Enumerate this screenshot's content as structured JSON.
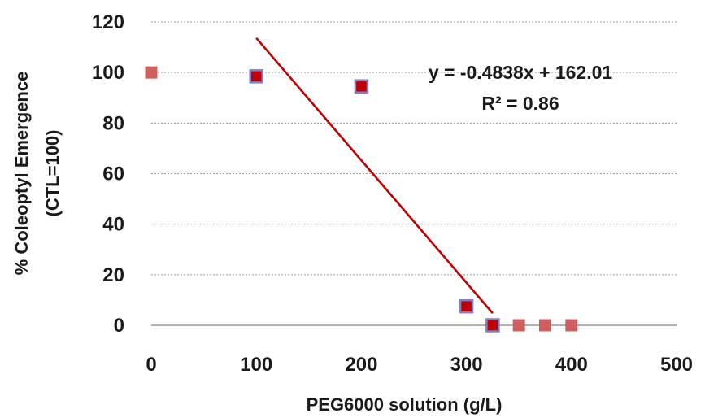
{
  "chart_data": {
    "type": "scatter",
    "xlabel": "PEG6000 solution (g/L)",
    "ylabel": [
      "% Coleoptyl Emergence",
      "(CTL=100)"
    ],
    "xlim": [
      0,
      500
    ],
    "ylim": [
      0,
      120
    ],
    "x_ticks": [
      0,
      100,
      200,
      300,
      400,
      500
    ],
    "y_ticks": [
      0,
      20,
      40,
      60,
      80,
      100,
      120
    ],
    "grid": "horizontal",
    "series": [
      {
        "points": [
          {
            "x": 0,
            "y": 100,
            "style": "light"
          },
          {
            "x": 100,
            "y": 98.5,
            "style": "dark"
          },
          {
            "x": 200,
            "y": 94.5,
            "style": "dark"
          },
          {
            "x": 300,
            "y": 7.5,
            "style": "dark"
          },
          {
            "x": 325,
            "y": 0,
            "style": "dark"
          },
          {
            "x": 350,
            "y": 0,
            "style": "light"
          },
          {
            "x": 375,
            "y": 0,
            "style": "light"
          },
          {
            "x": 400,
            "y": 0,
            "style": "light"
          }
        ]
      }
    ],
    "trendline": {
      "slope": -0.4838,
      "intercept": 162.01,
      "x_range": [
        100,
        325
      ],
      "color": "#c00000",
      "equation_label": "y = -0.4838x + 162.01",
      "r2_label": "R² = 0.86"
    },
    "colors": {
      "dark_fill": "#c00000",
      "dark_border": "#8080c8",
      "light_fill": "#d06060"
    }
  }
}
